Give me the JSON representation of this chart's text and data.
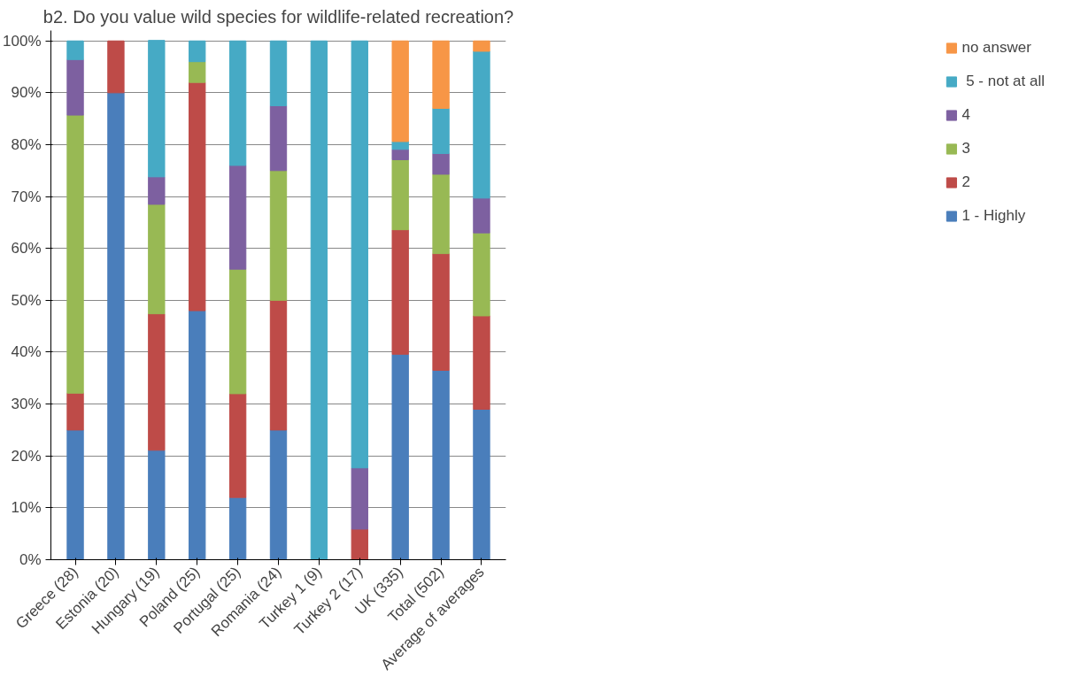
{
  "chart_data": {
    "type": "bar",
    "stacked": true,
    "title": "b2. Do you value wild species for wildlife-related recreation?",
    "categories": [
      "Greece (28)",
      "Estonia (20)",
      "Hungary (19)",
      "Poland (25)",
      "Portugal (25)",
      "Romania (24)",
      "Turkey 1 (9)",
      "Turkey 2 (17)",
      "UK (335)",
      "Total (502)",
      "Average of averages"
    ],
    "series": [
      {
        "name": "1 - Highly",
        "color": "#4a7ebb",
        "values": [
          25,
          90,
          21.1,
          48,
          12,
          25,
          null,
          null,
          39.6,
          36.5,
          29
        ]
      },
      {
        "name": "2",
        "color": "#be4b48",
        "values": [
          7.1,
          10,
          26.3,
          44,
          20,
          25,
          null,
          5.9,
          24,
          22.5,
          18
        ]
      },
      {
        "name": "3",
        "color": "#98b954",
        "values": [
          53.6,
          null,
          21.1,
          4,
          24,
          25,
          null,
          null,
          13.5,
          15.3,
          16
        ]
      },
      {
        "name": "4",
        "color": "#7d60a0",
        "values": [
          10.7,
          null,
          5.3,
          null,
          20,
          12.5,
          null,
          11.8,
          2,
          4,
          6.7
        ]
      },
      {
        "name": " 5 - not at all",
        "color": "#46aac5",
        "values": [
          3.6,
          null,
          26.3,
          4,
          24,
          12.5,
          100,
          82.3,
          1.5,
          8.7,
          28.3
        ]
      },
      {
        "name": "no answer",
        "color": "#f79646",
        "values": [
          null,
          null,
          null,
          null,
          null,
          null,
          null,
          null,
          19.4,
          13,
          2
        ]
      }
    ],
    "ylim": [
      0,
      100
    ],
    "yticks": [
      {
        "value": 0,
        "label": "0%"
      },
      {
        "value": 10,
        "label": "10%"
      },
      {
        "value": 20,
        "label": "20%"
      },
      {
        "value": 30,
        "label": "30%"
      },
      {
        "value": 40,
        "label": "40%"
      },
      {
        "value": 50,
        "label": "50%"
      },
      {
        "value": 60,
        "label": "60%"
      },
      {
        "value": 70,
        "label": "70%"
      },
      {
        "value": 80,
        "label": "80%"
      },
      {
        "value": 90,
        "label": "90%"
      },
      {
        "value": 100,
        "label": "100%"
      }
    ],
    "grid": "y",
    "legend": "right"
  }
}
